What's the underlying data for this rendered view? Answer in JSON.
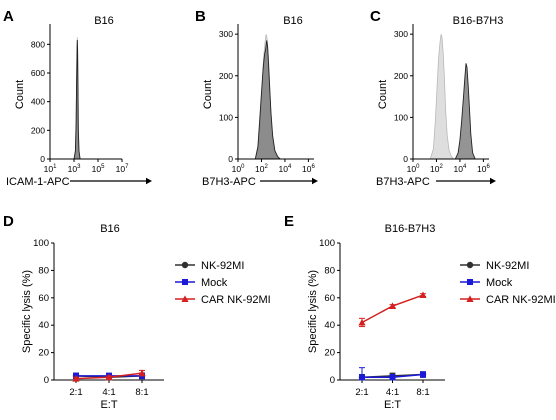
{
  "chart_data": [
    {
      "panel": "A",
      "type": "area",
      "title": "B16",
      "ylabel": "Count",
      "xlabel": "ICAM-1-APC",
      "xscale": "log",
      "xlim": [
        10,
        10000000
      ],
      "ylim": [
        0,
        900
      ],
      "xticks": [
        {
          "value": 10,
          "label": "10",
          "sup": "1"
        },
        {
          "value": 1000,
          "label": "10",
          "sup": "3"
        },
        {
          "value": 100000,
          "label": "10",
          "sup": "5"
        },
        {
          "value": 10000000,
          "label": "10",
          "sup": "7"
        }
      ],
      "yticks": [
        {
          "value": 0,
          "label": "0"
        },
        {
          "value": 200,
          "label": "200"
        },
        {
          "value": 400,
          "label": "400"
        },
        {
          "value": 600,
          "label": "600"
        },
        {
          "value": 800,
          "label": "800"
        }
      ],
      "series": [
        {
          "style": "light",
          "x": [
            1000,
            1300,
            1500,
            1650,
            1800,
            1900,
            2000,
            2150,
            2300,
            2600,
            3200
          ],
          "y": [
            0,
            60,
            260,
            560,
            800,
            850,
            780,
            520,
            230,
            60,
            0
          ]
        },
        {
          "style": "dark",
          "x": [
            1000,
            1300,
            1500,
            1650,
            1800,
            1900,
            2000,
            2150,
            2300,
            2600,
            3200
          ],
          "y": [
            0,
            55,
            250,
            540,
            780,
            830,
            760,
            500,
            210,
            55,
            0
          ]
        }
      ]
    },
    {
      "panel": "B",
      "type": "area",
      "title": "B16",
      "ylabel": "Count",
      "xlabel": "B7H3-APC",
      "xscale": "log",
      "xlim": [
        1,
        3000000
      ],
      "ylim": [
        0,
        310
      ],
      "xticks": [
        {
          "value": 1,
          "label": "10",
          "sup": "0"
        },
        {
          "value": 100,
          "label": "10",
          "sup": "2"
        },
        {
          "value": 10000,
          "label": "10",
          "sup": "4"
        },
        {
          "value": 1000000,
          "label": "10",
          "sup": "6"
        }
      ],
      "yticks": [
        {
          "value": 0,
          "label": "0"
        },
        {
          "value": 100,
          "label": "100"
        },
        {
          "value": 200,
          "label": "200"
        },
        {
          "value": 300,
          "label": "300"
        }
      ],
      "series": [
        {
          "style": "light",
          "x": [
            30,
            55,
            80,
            110,
            150,
            200,
            250,
            300,
            380,
            480,
            600,
            800,
            1200,
            2000,
            3000
          ],
          "y": [
            0,
            25,
            90,
            170,
            240,
            280,
            300,
            290,
            250,
            190,
            120,
            60,
            20,
            5,
            0
          ]
        },
        {
          "style": "dark",
          "x": [
            30,
            50,
            70,
            100,
            140,
            180,
            230,
            280,
            330,
            400,
            500,
            650,
            900,
            1400,
            2500,
            4000
          ],
          "y": [
            0,
            30,
            90,
            160,
            220,
            250,
            265,
            285,
            270,
            230,
            170,
            110,
            55,
            20,
            5,
            0
          ]
        }
      ]
    },
    {
      "panel": "C",
      "type": "area",
      "title": "B16-B7H3",
      "ylabel": "Count",
      "xlabel": "B7H3-APC",
      "xscale": "log",
      "xlim": [
        1,
        3000000
      ],
      "ylim": [
        0,
        310
      ],
      "xticks": [
        {
          "value": 1,
          "label": "10",
          "sup": "0"
        },
        {
          "value": 100,
          "label": "10",
          "sup": "2"
        },
        {
          "value": 10000,
          "label": "10",
          "sup": "4"
        },
        {
          "value": 1000000,
          "label": "10",
          "sup": "6"
        }
      ],
      "yticks": [
        {
          "value": 0,
          "label": "0"
        },
        {
          "value": 100,
          "label": "100"
        },
        {
          "value": 200,
          "label": "200"
        },
        {
          "value": 300,
          "label": "300"
        }
      ],
      "series": [
        {
          "style": "light",
          "x": [
            30,
            55,
            80,
            110,
            150,
            200,
            250,
            300,
            380,
            480,
            600,
            800,
            1200,
            2000,
            3000
          ],
          "y": [
            0,
            25,
            90,
            170,
            240,
            280,
            300,
            290,
            250,
            190,
            120,
            60,
            20,
            5,
            0
          ]
        },
        {
          "style": "dark",
          "x": [
            4000,
            7000,
            10000,
            14000,
            20000,
            27000,
            33000,
            40000,
            50000,
            65000,
            85000,
            120000,
            200000
          ],
          "y": [
            0,
            15,
            45,
            90,
            150,
            200,
            230,
            220,
            180,
            120,
            60,
            15,
            0
          ]
        }
      ]
    },
    {
      "panel": "D",
      "type": "line",
      "title": "B16",
      "ylabel": "Specific lysis (%)",
      "xlabel": "E:T",
      "categories": [
        "2:1",
        "4:1",
        "8:1"
      ],
      "ylim": [
        0,
        100
      ],
      "yticks": [
        0,
        20,
        40,
        60,
        80,
        100
      ],
      "legend": "top-right",
      "series": [
        {
          "name": "NK-92MI",
          "color": "#303030",
          "marker": "circle",
          "values": [
            3,
            2,
            3
          ],
          "errors": [
            2,
            2,
            2
          ]
        },
        {
          "name": "Mock",
          "color": "#1a1ad6",
          "marker": "square",
          "values": [
            3,
            3,
            3
          ],
          "errors": [
            2,
            2,
            2
          ]
        },
        {
          "name": "CAR NK-92MI",
          "color": "#d42020",
          "marker": "triangle",
          "values": [
            1,
            2,
            5
          ],
          "errors": [
            1,
            1,
            2
          ]
        }
      ]
    },
    {
      "panel": "E",
      "type": "line",
      "title": "B16-B7H3",
      "ylabel": "Specific lysis (%)",
      "xlabel": "E:T",
      "categories": [
        "2:1",
        "4:1",
        "8:1"
      ],
      "ylim": [
        0,
        100
      ],
      "yticks": [
        0,
        20,
        40,
        60,
        80,
        100
      ],
      "legend": "top-right",
      "series": [
        {
          "name": "NK-92MI",
          "color": "#303030",
          "marker": "circle",
          "values": [
            2,
            3,
            4
          ],
          "errors": [
            2,
            2,
            2
          ]
        },
        {
          "name": "Mock",
          "color": "#1a1ad6",
          "marker": "square",
          "values": [
            2,
            2,
            4
          ],
          "errors": [
            7,
            2,
            2
          ]
        },
        {
          "name": "CAR NK-92MI",
          "color": "#d42020",
          "marker": "triangle",
          "values": [
            42,
            54,
            62
          ],
          "errors": [
            3,
            1,
            1
          ]
        }
      ]
    }
  ]
}
